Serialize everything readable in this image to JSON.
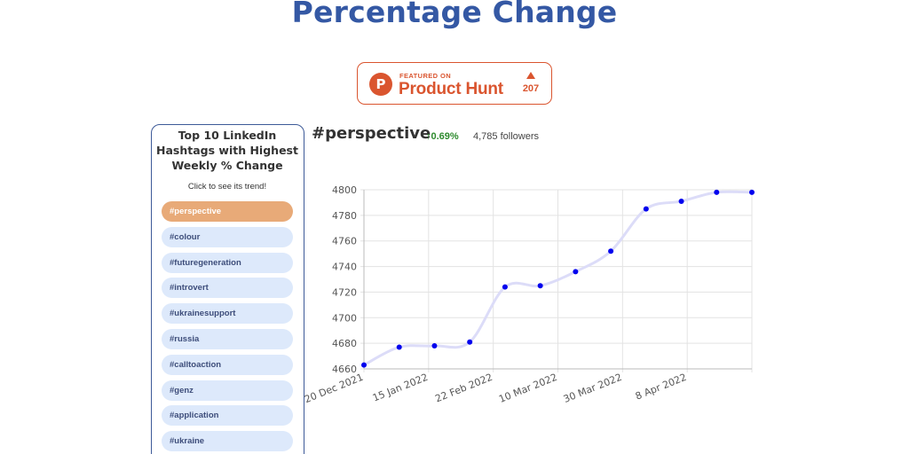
{
  "page": {
    "title": "Percentage Change"
  },
  "product_hunt": {
    "featured_label": "FEATURED ON",
    "name": "Product Hunt",
    "votes": "207",
    "logo_letter": "P",
    "color": "#da552f"
  },
  "sidebar": {
    "title": "Top 10 LinkedIn Hashtags with Highest Weekly % Change",
    "hint": "Click to see its trend!",
    "items": [
      {
        "label": "#perspective",
        "active": true
      },
      {
        "label": "#colour",
        "active": false
      },
      {
        "label": "#futuregeneration",
        "active": false
      },
      {
        "label": "#introvert",
        "active": false
      },
      {
        "label": "#ukrainesupport",
        "active": false
      },
      {
        "label": "#russia",
        "active": false
      },
      {
        "label": "#calltoaction",
        "active": false
      },
      {
        "label": "#genz",
        "active": false
      },
      {
        "label": "#application",
        "active": false
      },
      {
        "label": "#ukraine",
        "active": false
      }
    ]
  },
  "detail": {
    "hashtag": "#perspective",
    "change": "↑0.69%",
    "followers": "4,785 followers"
  },
  "colors": {
    "title": "#3458a4",
    "active_item": "#e8aa78",
    "item": "#dde9fb",
    "positive": "#2e8b2e",
    "point": "#0000ee",
    "line": "#dcdcf8"
  },
  "chart_data": {
    "type": "line",
    "title": "",
    "xlabel": "",
    "ylabel": "",
    "grid": true,
    "ylim": [
      4660,
      4800
    ],
    "y_ticks": [
      4660,
      4680,
      4700,
      4720,
      4740,
      4760,
      4780,
      4800
    ],
    "x_tick_labels": [
      "20 Dec 2021",
      "15 Jan 2022",
      "22 Feb 2022",
      "10 Mar 2022",
      "30 Mar 2022",
      "8 Apr 2022"
    ],
    "series": [
      {
        "values": [
          4663,
          4677,
          4678,
          4681,
          4724,
          4725,
          4736,
          4752,
          4785,
          4791,
          4798,
          4798
        ]
      }
    ]
  }
}
